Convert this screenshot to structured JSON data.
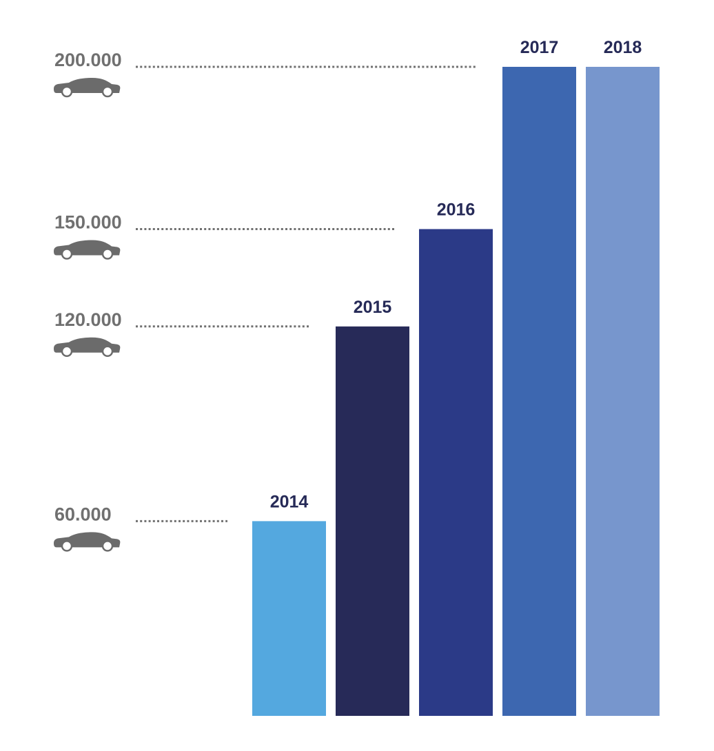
{
  "chart_data": {
    "type": "bar",
    "title": "",
    "xlabel": "",
    "ylabel": "",
    "ylim": [
      0,
      200000
    ],
    "grid": false,
    "legend": "none",
    "categories": [
      "2014",
      "2015",
      "2016",
      "2017",
      "2018"
    ],
    "values": [
      60000,
      120000,
      150000,
      200000,
      200000
    ],
    "colors": [
      "#54a8df",
      "#272a58",
      "#2b3a87",
      "#3d67b0",
      "#7796cd"
    ],
    "reference_levels": [
      {
        "value": 200000,
        "label": "200.000",
        "icon": "car-icon"
      },
      {
        "value": 150000,
        "label": "150.000",
        "icon": "car-icon"
      },
      {
        "value": 120000,
        "label": "120.000",
        "icon": "car-icon"
      },
      {
        "value": 60000,
        "label": "60.000",
        "icon": "car-icon"
      }
    ],
    "label_color": "#707070",
    "year_label_color": "#262a57"
  }
}
